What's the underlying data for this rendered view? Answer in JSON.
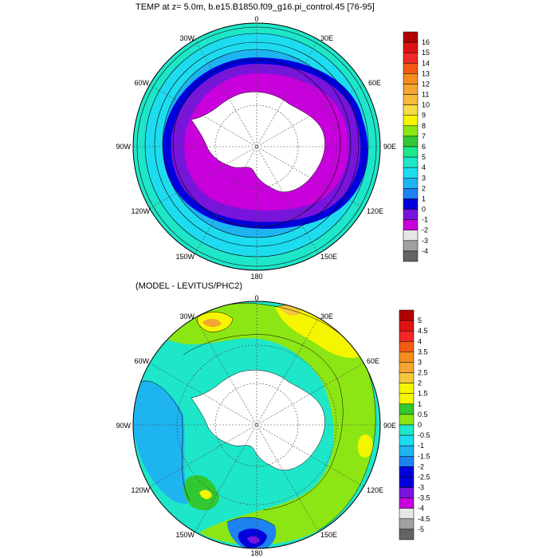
{
  "panel_top": {
    "title": "TEMP at z=   5.0m, b.e15.B1850.f09_g16.pi_control.45 [76-95]",
    "lon_labels": {
      "n": "0",
      "ne": "30E",
      "ene": "60E",
      "e": "90E",
      "ese": "120E",
      "se": "150E",
      "s": "180",
      "sw": "150W",
      "wsw": "120W",
      "w": "90W",
      "wnw": "60W",
      "nw": "30W"
    },
    "colorbar": {
      "labels": [
        "16",
        "15",
        "14",
        "13",
        "12",
        "11",
        "10",
        "9",
        "8",
        "7",
        "6",
        "5",
        "4",
        "3",
        "2",
        "1",
        "0",
        "-1",
        "-2",
        "-3",
        "-4"
      ],
      "colors": [
        "#b00000",
        "#dc1414",
        "#f02828",
        "#f55a14",
        "#f58c1e",
        "#f5a532",
        "#f5b93c",
        "#f5dc46",
        "#f5f500",
        "#8ce614",
        "#32c832",
        "#1ee68c",
        "#1ee6c8",
        "#1edcf0",
        "#1eb4f0",
        "#1e82f0",
        "#0000dc",
        "#7814dc",
        "#c800dc",
        "#e6e6e6",
        "#a0a0a0",
        "#646464"
      ]
    }
  },
  "panel_bottom": {
    "title": "(MODEL - LEVITUS/PHC2)",
    "lon_labels": {
      "n": "0",
      "ne": "30E",
      "ene": "60E",
      "e": "90E",
      "ese": "120E",
      "se": "150E",
      "s": "180",
      "sw": "150W",
      "wsw": "120W",
      "w": "90W",
      "wnw": "60W",
      "nw": "30W"
    },
    "colorbar": {
      "labels": [
        "5",
        "4.5",
        "4",
        "3.5",
        "3",
        "2.5",
        "2",
        "1.5",
        "1",
        "0.5",
        "0",
        "-0.5",
        "-1",
        "-1.5",
        "-2",
        "-2.5",
        "-3",
        "-3.5",
        "-4",
        "-4.5",
        "-5"
      ],
      "colors": [
        "#b00000",
        "#dc1414",
        "#f02828",
        "#f55a14",
        "#f58c1e",
        "#f5a532",
        "#f5c83c",
        "#f5f500",
        "#f5f500",
        "#32c832",
        "#8ce614",
        "#1ee6c8",
        "#1edcf0",
        "#1eb4f0",
        "#1e82f0",
        "#0000dc",
        "#0000dc",
        "#7814dc",
        "#c800dc",
        "#e6e6e6",
        "#a0a0a0",
        "#646464"
      ]
    }
  }
}
